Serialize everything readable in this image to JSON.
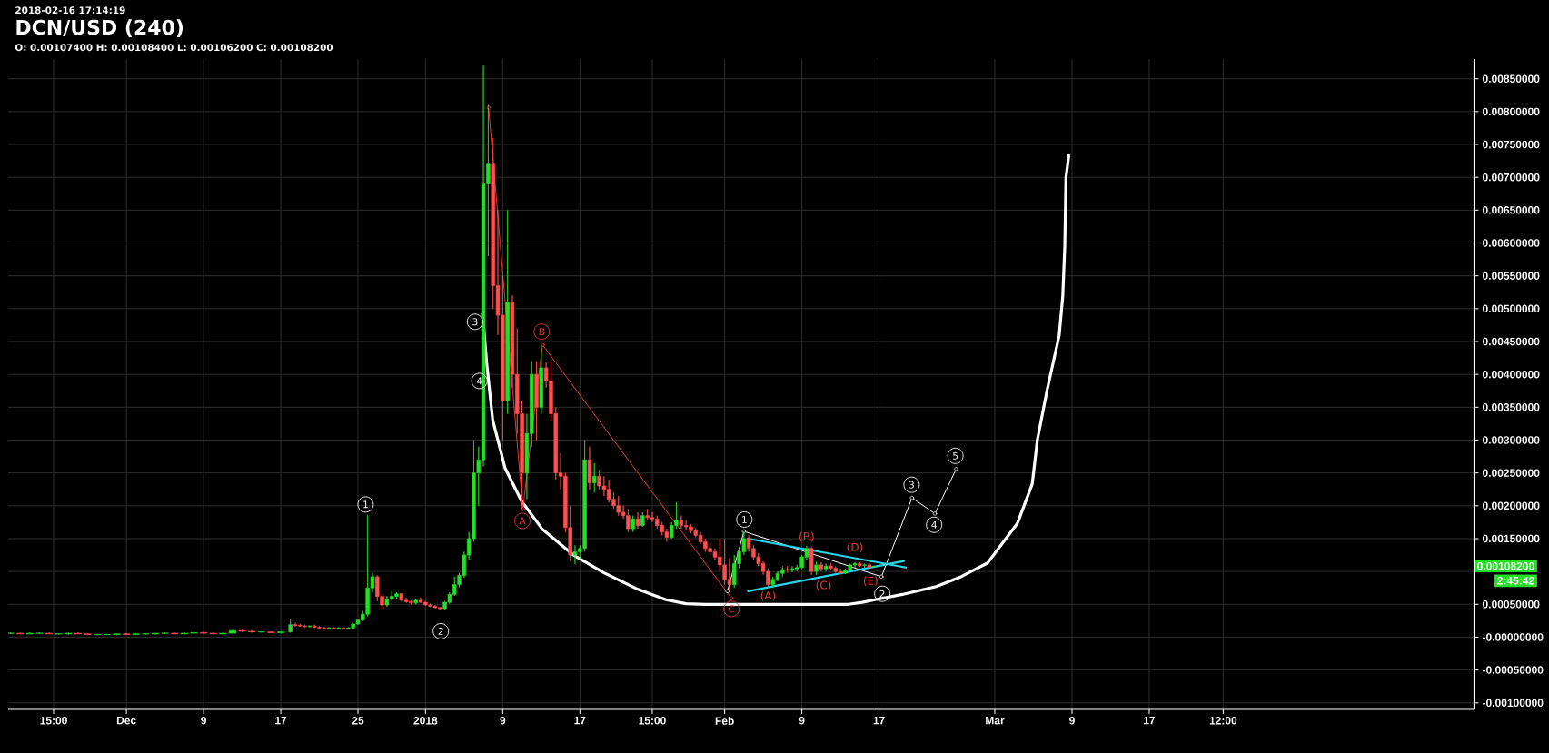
{
  "chart_data": {
    "type": "candlestick",
    "title": "DCN/USD (240)",
    "x": [
      "2017-11-19",
      "2017-11-20",
      "2017-11-21",
      "2017-11-22",
      "2017-11-23",
      "2017-11-24",
      "2017-11-25",
      "2017-11-26",
      "2017-11-27",
      "2017-11-28",
      "2017-11-29",
      "2017-11-30",
      "2017-12-01",
      "2017-12-02",
      "2017-12-03",
      "2017-12-04",
      "2017-12-05",
      "2017-12-06",
      "2017-12-07",
      "2017-12-08",
      "2017-12-09",
      "2017-12-10",
      "2017-12-11",
      "2017-12-12",
      "2017-12-13",
      "2017-12-14",
      "2017-12-15",
      "2017-12-16",
      "2017-12-17",
      "2017-12-18T00:00",
      "2017-12-18T12:00",
      "2017-12-19T00:00",
      "2017-12-19T12:00",
      "2017-12-20T00:00",
      "2017-12-20T12:00",
      "2017-12-21T00:00",
      "2017-12-21T12:00",
      "2017-12-22T00:00",
      "2017-12-22T12:00",
      "2017-12-23T00:00",
      "2017-12-23T12:00",
      "2017-12-24T00:00",
      "2017-12-24T12:00",
      "2017-12-25T00:00",
      "2017-12-25T12:00",
      "2017-12-26T00:00",
      "2017-12-26T12:00",
      "2017-12-27T00:00",
      "2017-12-27T12:00",
      "2017-12-28T00:00",
      "2017-12-28T12:00",
      "2017-12-29T00:00",
      "2017-12-29T12:00",
      "2017-12-30T00:00",
      "2017-12-30T12:00",
      "2017-12-31T00:00",
      "2017-12-31T12:00",
      "2018-01-01T00:00",
      "2018-01-01T12:00",
      "2018-01-02T00:00",
      "2018-01-02T12:00",
      "2018-01-03T00:00",
      "2018-01-03T12:00",
      "2018-01-04T00:00",
      "2018-01-04T12:00",
      "2018-01-05T00:00",
      "2018-01-05T12:00",
      "2018-01-06T00:00",
      "2018-01-06T12:00",
      "2018-01-07T00:00",
      "2018-01-07T12:00",
      "2018-01-08T00:00",
      "2018-01-08T12:00",
      "2018-01-09T00:00",
      "2018-01-09T12:00",
      "2018-01-10T00:00",
      "2018-01-10T12:00",
      "2018-01-11T00:00",
      "2018-01-11T12:00",
      "2018-01-12T00:00",
      "2018-01-12T12:00",
      "2018-01-13T00:00",
      "2018-01-13T12:00",
      "2018-01-14T00:00",
      "2018-01-14T12:00",
      "2018-01-15T00:00",
      "2018-01-15T12:00",
      "2018-01-16T00:00",
      "2018-01-16T12:00",
      "2018-01-17T00:00",
      "2018-01-17T12:00",
      "2018-01-18T00:00",
      "2018-01-18T12:00",
      "2018-01-19T00:00",
      "2018-01-19T12:00",
      "2018-01-20T00:00",
      "2018-01-20T12:00",
      "2018-01-21T00:00",
      "2018-01-21T12:00",
      "2018-01-22T00:00",
      "2018-01-22T12:00",
      "2018-01-23T00:00",
      "2018-01-23T12:00",
      "2018-01-24T00:00",
      "2018-01-24T12:00",
      "2018-01-25T00:00",
      "2018-01-25T12:00",
      "2018-01-26T00:00",
      "2018-01-26T12:00",
      "2018-01-27T00:00",
      "2018-01-27T12:00",
      "2018-01-28T00:00",
      "2018-01-28T12:00",
      "2018-01-29T00:00",
      "2018-01-29T12:00",
      "2018-01-30T00:00",
      "2018-01-30T12:00",
      "2018-01-31T00:00",
      "2018-01-31T12:00",
      "2018-02-01T00:00",
      "2018-02-01T12:00",
      "2018-02-02T00:00",
      "2018-02-02T12:00",
      "2018-02-03T00:00",
      "2018-02-03T12:00",
      "2018-02-04T00:00",
      "2018-02-04T12:00",
      "2018-02-05T00:00",
      "2018-02-05T12:00",
      "2018-02-06T00:00",
      "2018-02-06T12:00",
      "2018-02-07T00:00",
      "2018-02-07T12:00",
      "2018-02-08T00:00",
      "2018-02-08T12:00",
      "2018-02-09T00:00",
      "2018-02-09T12:00",
      "2018-02-10T00:00",
      "2018-02-10T12:00",
      "2018-02-11T00:00",
      "2018-02-11T12:00",
      "2018-02-12T00:00",
      "2018-02-12T12:00",
      "2018-02-13T00:00",
      "2018-02-13T12:00",
      "2018-02-14T00:00",
      "2018-02-14T12:00",
      "2018-02-15T00:00",
      "2018-02-15T12:00",
      "2018-02-16T00:00",
      "2018-02-16T12:00"
    ],
    "ohlc": [
      [
        6e-05,
        7e-05,
        5e-05,
        6e-05
      ],
      [
        6e-05,
        7e-05,
        5e-05,
        5e-05
      ],
      [
        5e-05,
        7e-05,
        5e-05,
        6e-05
      ],
      [
        6e-05,
        7e-05,
        5e-05,
        6e-05
      ],
      [
        6e-05,
        7e-05,
        5e-05,
        5e-05
      ],
      [
        5e-05,
        6e-05,
        4e-05,
        5e-05
      ],
      [
        5e-05,
        7e-05,
        4e-05,
        6e-05
      ],
      [
        6e-05,
        7e-05,
        5e-05,
        5e-05
      ],
      [
        5e-05,
        6e-05,
        4e-05,
        4e-05
      ],
      [
        4e-05,
        5e-05,
        3e-05,
        4e-05
      ],
      [
        4e-05,
        5e-05,
        3e-05,
        4e-05
      ],
      [
        4e-05,
        5e-05,
        3e-05,
        5e-05
      ],
      [
        5e-05,
        6e-05,
        4e-05,
        4e-05
      ],
      [
        4e-05,
        6e-05,
        4e-05,
        5e-05
      ],
      [
        5e-05,
        6e-05,
        4e-05,
        5e-05
      ],
      [
        5e-05,
        6e-05,
        4e-05,
        6e-05
      ],
      [
        6e-05,
        7e-05,
        5e-05,
        6e-05
      ],
      [
        6e-05,
        7e-05,
        5e-05,
        5e-05
      ],
      [
        5e-05,
        7e-05,
        5e-05,
        6e-05
      ],
      [
        6e-05,
        8e-05,
        5e-05,
        7e-05
      ],
      [
        7e-05,
        8e-05,
        5e-05,
        6e-05
      ],
      [
        6e-05,
        7e-05,
        5e-05,
        5e-05
      ],
      [
        5e-05,
        7e-05,
        5e-05,
        6e-05
      ],
      [
        6e-05,
        0.00011,
        6e-05,
        0.0001
      ],
      [
        0.0001,
        0.00011,
        8e-05,
        9e-05
      ],
      [
        9e-05,
        0.0001,
        7e-05,
        8e-05
      ],
      [
        8e-05,
        9e-05,
        7e-05,
        8e-05
      ],
      [
        8e-05,
        9e-05,
        6e-05,
        7e-05
      ],
      [
        7e-05,
        9e-05,
        6e-05,
        8e-05
      ],
      [
        8e-05,
        0.00028,
        7e-05,
        0.00019
      ],
      [
        0.00019,
        0.00022,
        0.00016,
        0.00018
      ],
      [
        0.00018,
        0.0002,
        0.00016,
        0.00017
      ],
      [
        0.00017,
        0.00019,
        0.00015,
        0.00016
      ],
      [
        0.00016,
        0.00018,
        0.00015,
        0.00017
      ],
      [
        0.00017,
        0.00019,
        0.00014,
        0.00015
      ],
      [
        0.00015,
        0.00017,
        0.00013,
        0.00014
      ],
      [
        0.00014,
        0.00016,
        0.00012,
        0.00013
      ],
      [
        0.00013,
        0.00015,
        0.00012,
        0.00014
      ],
      [
        0.00014,
        0.00015,
        0.00012,
        0.00013
      ],
      [
        0.00013,
        0.00015,
        0.00012,
        0.00014
      ],
      [
        0.00014,
        0.00015,
        0.00012,
        0.00013
      ],
      [
        0.00013,
        0.00015,
        0.00012,
        0.00014
      ],
      [
        0.00014,
        0.00021,
        0.00013,
        0.0002
      ],
      [
        0.0002,
        0.00028,
        0.00019,
        0.00026
      ],
      [
        0.00026,
        0.0004,
        0.00024,
        0.00035
      ],
      [
        0.00035,
        0.00186,
        0.00032,
        0.00075
      ],
      [
        0.00075,
        0.00098,
        0.00068,
        0.00092
      ],
      [
        0.00092,
        0.00094,
        0.00055,
        0.00062
      ],
      [
        0.00062,
        0.00066,
        0.00042,
        0.00049
      ],
      [
        0.00049,
        0.00063,
        0.00046,
        0.00058
      ],
      [
        0.00058,
        0.0007,
        0.00055,
        0.00062
      ],
      [
        0.00062,
        0.00068,
        0.00058,
        0.00066
      ],
      [
        0.00066,
        0.00067,
        0.00055,
        0.00056
      ],
      [
        0.00056,
        0.0006,
        0.00052,
        0.00054
      ],
      [
        0.00054,
        0.00056,
        0.0005,
        0.00052
      ],
      [
        0.00052,
        0.00058,
        0.0005,
        0.00056
      ],
      [
        0.00056,
        0.0006,
        0.00052,
        0.00053
      ],
      [
        0.00053,
        0.00055,
        0.00048,
        0.00049
      ],
      [
        0.00049,
        0.00051,
        0.00046,
        0.00047
      ],
      [
        0.00047,
        0.00049,
        0.00043,
        0.00045
      ],
      [
        0.00045,
        0.00046,
        0.00041,
        0.00042
      ],
      [
        0.00042,
        0.00055,
        0.00041,
        0.00053
      ],
      [
        0.00053,
        0.00068,
        0.00051,
        0.00065
      ],
      [
        0.00065,
        0.00092,
        0.00063,
        0.0008
      ],
      [
        0.0008,
        0.00098,
        0.00076,
        0.00094
      ],
      [
        0.00094,
        0.0013,
        0.0009,
        0.00125
      ],
      [
        0.00125,
        0.0016,
        0.00118,
        0.0015
      ],
      [
        0.0015,
        0.003,
        0.00145,
        0.0025
      ],
      [
        0.0025,
        0.0029,
        0.002,
        0.0027
      ],
      [
        0.0027,
        0.0087,
        0.0026,
        0.0069
      ],
      [
        0.0069,
        0.0081,
        0.0058,
        0.0072
      ],
      [
        0.0072,
        0.0076,
        0.005,
        0.00535
      ],
      [
        0.00535,
        0.0065,
        0.0046,
        0.0049
      ],
      [
        0.0049,
        0.0055,
        0.003,
        0.0036
      ],
      [
        0.0036,
        0.0065,
        0.0034,
        0.0051
      ],
      [
        0.0051,
        0.0052,
        0.0038,
        0.004
      ],
      [
        0.004,
        0.0047,
        0.0031,
        0.0034
      ],
      [
        0.0034,
        0.0036,
        0.00195,
        0.0025
      ],
      [
        0.0025,
        0.0034,
        0.0021,
        0.0031
      ],
      [
        0.0031,
        0.0042,
        0.0029,
        0.004
      ],
      [
        0.004,
        0.0042,
        0.003,
        0.0035
      ],
      [
        0.0035,
        0.00445,
        0.0034,
        0.0041
      ],
      [
        0.0041,
        0.0042,
        0.0038,
        0.0039
      ],
      [
        0.0039,
        0.0042,
        0.0033,
        0.0034
      ],
      [
        0.0034,
        0.0035,
        0.0024,
        0.0025
      ],
      [
        0.0025,
        0.0028,
        0.00225,
        0.00245
      ],
      [
        0.00245,
        0.0025,
        0.0016,
        0.00167
      ],
      [
        0.00167,
        0.002,
        0.00116,
        0.00125
      ],
      [
        0.00125,
        0.0014,
        0.00111,
        0.0013
      ],
      [
        0.0013,
        0.0014,
        0.0012,
        0.00135
      ],
      [
        0.00135,
        0.003,
        0.0013,
        0.0027
      ],
      [
        0.0027,
        0.0029,
        0.00225,
        0.00235
      ],
      [
        0.00235,
        0.00265,
        0.0022,
        0.00245
      ],
      [
        0.00245,
        0.00255,
        0.00225,
        0.0023
      ],
      [
        0.0023,
        0.00245,
        0.00215,
        0.00225
      ],
      [
        0.00225,
        0.0024,
        0.00205,
        0.0021
      ],
      [
        0.0021,
        0.0022,
        0.00195,
        0.002
      ],
      [
        0.002,
        0.00215,
        0.00185,
        0.0019
      ],
      [
        0.0019,
        0.002,
        0.0018,
        0.00185
      ],
      [
        0.00185,
        0.00195,
        0.0016,
        0.00165
      ],
      [
        0.00165,
        0.00185,
        0.0016,
        0.0018
      ],
      [
        0.0018,
        0.0019,
        0.00165,
        0.0017
      ],
      [
        0.0017,
        0.0019,
        0.00168,
        0.00185
      ],
      [
        0.00185,
        0.00195,
        0.00178,
        0.00182
      ],
      [
        0.00182,
        0.0019,
        0.00175,
        0.0018
      ],
      [
        0.0018,
        0.00185,
        0.00165,
        0.0017
      ],
      [
        0.0017,
        0.00175,
        0.00155,
        0.0016
      ],
      [
        0.0016,
        0.00165,
        0.00145,
        0.00152
      ],
      [
        0.00152,
        0.00175,
        0.0015,
        0.0017
      ],
      [
        0.0017,
        0.00205,
        0.00165,
        0.00178
      ],
      [
        0.00178,
        0.00185,
        0.00165,
        0.0017
      ],
      [
        0.0017,
        0.00178,
        0.00162,
        0.00168
      ],
      [
        0.00168,
        0.00172,
        0.00158,
        0.00162
      ],
      [
        0.00162,
        0.00166,
        0.00152,
        0.00155
      ],
      [
        0.00155,
        0.0016,
        0.00142,
        0.00145
      ],
      [
        0.00145,
        0.0015,
        0.0013,
        0.00135
      ],
      [
        0.00135,
        0.00145,
        0.00125,
        0.0013
      ],
      [
        0.0013,
        0.00135,
        0.00118,
        0.00122
      ],
      [
        0.00122,
        0.0015,
        0.001,
        0.0011
      ],
      [
        0.0011,
        0.0015,
        0.0008,
        0.00088
      ],
      [
        0.00088,
        0.0012,
        0.0007,
        0.0008
      ],
      [
        0.0008,
        0.00125,
        0.00075,
        0.00112
      ],
      [
        0.00112,
        0.00135,
        0.00105,
        0.0013
      ],
      [
        0.0013,
        0.00161,
        0.00125,
        0.0015
      ],
      [
        0.0015,
        0.00155,
        0.0013,
        0.00135
      ],
      [
        0.00135,
        0.0014,
        0.00118,
        0.00122
      ],
      [
        0.00122,
        0.00128,
        0.00108,
        0.00112
      ],
      [
        0.00112,
        0.00115,
        0.00095,
        0.001
      ],
      [
        0.001,
        0.00105,
        0.00076,
        0.0008
      ],
      [
        0.0008,
        0.00092,
        0.00075,
        0.00088
      ],
      [
        0.00088,
        0.001,
        0.00085,
        0.00097
      ],
      [
        0.00097,
        0.00108,
        0.00092,
        0.00103
      ],
      [
        0.00103,
        0.00108,
        0.00098,
        0.00102
      ],
      [
        0.00102,
        0.00108,
        0.00099,
        0.00104
      ],
      [
        0.00104,
        0.0011,
        0.001,
        0.00106
      ],
      [
        0.00106,
        0.00125,
        0.00104,
        0.00122
      ],
      [
        0.00122,
        0.00139,
        0.00118,
        0.00135
      ],
      [
        0.00135,
        0.00138,
        0.00095,
        0.001
      ],
      [
        0.001,
        0.00115,
        0.00095,
        0.0011
      ],
      [
        0.0011,
        0.00114,
        0.001,
        0.00104
      ],
      [
        0.00104,
        0.00112,
        0.001,
        0.00108
      ],
      [
        0.00108,
        0.00112,
        0.00102,
        0.00105
      ],
      [
        0.00105,
        0.00108,
        0.00098,
        0.001
      ],
      [
        0.001,
        0.00104,
        0.00096,
        0.00098
      ],
      [
        0.00098,
        0.00104,
        0.00096,
        0.00102
      ],
      [
        0.00102,
        0.00112,
        0.001,
        0.0011
      ],
      [
        0.0011,
        0.00114,
        0.00106,
        0.00112
      ],
      [
        0.00112,
        0.00114,
        0.00107,
        0.00109
      ],
      [
        0.00109,
        0.00112,
        0.00105,
        0.0011
      ],
      [
        0.0011,
        0.00112,
        0.00104,
        0.00107
      ],
      [
        0.001074,
        0.001084,
        0.001062,
        0.001082
      ]
    ],
    "colors": [
      "#22e022",
      "#ff4f4f",
      "#22e022",
      "#22e022",
      "#ff4f4f",
      "#22e022",
      "#22e022",
      "#ff4f4f",
      "#ff4f4f",
      "#22e022",
      "#22e022",
      "#22e022",
      "#ff4f4f",
      "#22e022",
      "#22e022",
      "#22e022",
      "#22e022",
      "#ff4f4f",
      "#22e022",
      "#22e022",
      "#ff4f4f",
      "#ff4f4f",
      "#22e022",
      "#22e022",
      "#ff4f4f",
      "#ff4f4f",
      "#22e022",
      "#ff4f4f",
      "#22e022",
      "#22e022",
      "#ff4f4f",
      "#ff4f4f",
      "#ff4f4f",
      "#22e022",
      "#ff4f4f",
      "#ff4f4f",
      "#ff4f4f",
      "#22e022",
      "#ff4f4f",
      "#22e022",
      "#ff4f4f",
      "#22e022",
      "#22e022",
      "#22e022",
      "#22e022",
      "#22e022",
      "#22e022",
      "#ff4f4f",
      "#ff4f4f",
      "#22e022",
      "#22e022",
      "#22e022",
      "#ff4f4f",
      "#ff4f4f",
      "#ff4f4f",
      "#22e022",
      "#ff4f4f",
      "#ff4f4f",
      "#ff4f4f",
      "#ff4f4f",
      "#ff4f4f",
      "#22e022",
      "#22e022",
      "#22e022",
      "#22e022",
      "#22e022",
      "#22e022",
      "#22e022",
      "#22e022",
      "#22e022",
      "#22e022",
      "#ff4f4f",
      "#ff4f4f",
      "#ff4f4f",
      "#22e022",
      "#ff4f4f",
      "#ff4f4f",
      "#ff4f4f",
      "#22e022",
      "#22e022",
      "#ff4f4f",
      "#22e022",
      "#ff4f4f",
      "#ff4f4f",
      "#ff4f4f",
      "#ff4f4f",
      "#ff4f4f",
      "#ff4f4f",
      "#22e022",
      "#22e022",
      "#22e022",
      "#ff4f4f",
      "#22e022",
      "#ff4f4f",
      "#ff4f4f",
      "#ff4f4f",
      "#ff4f4f",
      "#ff4f4f",
      "#ff4f4f",
      "#ff4f4f",
      "#22e022",
      "#ff4f4f",
      "#22e022",
      "#ff4f4f",
      "#ff4f4f",
      "#ff4f4f",
      "#ff4f4f",
      "#ff4f4f",
      "#22e022",
      "#22e022",
      "#ff4f4f",
      "#ff4f4f",
      "#ff4f4f",
      "#ff4f4f",
      "#ff4f4f",
      "#ff4f4f",
      "#ff4f4f",
      "#ff4f4f",
      "#ff4f4f",
      "#ff4f4f",
      "#ff4f4f",
      "#22e022",
      "#22e022",
      "#22e022",
      "#ff4f4f",
      "#ff4f4f",
      "#ff4f4f",
      "#ff4f4f",
      "#ff4f4f",
      "#22e022",
      "#22e022",
      "#22e022",
      "#ff4f4f",
      "#22e022",
      "#22e022",
      "#22e022",
      "#22e022",
      "#ff4f4f",
      "#22e022",
      "#ff4f4f",
      "#22e022",
      "#ff4f4f",
      "#ff4f4f",
      "#ff4f4f",
      "#22e022",
      "#22e022",
      "#22e022",
      "#ff4f4f",
      "#22e022",
      "#ff4f4f",
      "#22e022"
    ],
    "series": [
      {
        "type": "line",
        "color": "#ffffff",
        "x": [
          "2018-01-06T22:00",
          "2018-01-07T08:00",
          "2018-01-07T23:00",
          "2018-01-09T06:00",
          "2018-01-10T23:00",
          "2018-01-13T03:00",
          "2018-01-16T08:00",
          "2018-01-19T12:00",
          "2018-01-22T20:00",
          "2018-01-25T22:00",
          "2018-01-28T00:00",
          "2018-01-30T00:00",
          "2018-02-13T20:00",
          "2018-02-15T06:00",
          "2018-02-16T14:00",
          "2018-02-19T10:00",
          "2018-02-22T22:00",
          "2018-02-25T12:00",
          "2018-02-28T06:00",
          "2018-03-03T08:00",
          "2018-03-04T21:00",
          "2018-03-05T10:00",
          "2018-03-06T10:00",
          "2018-03-07T16:00",
          "2018-03-08T01:00",
          "2018-03-08T06:00",
          "2018-03-08T09:00",
          "2018-03-08T16:00"
        ],
        "values": [
          0.00492,
          0.00418,
          0.00331,
          0.00257,
          0.00207,
          0.00164,
          0.00125,
          0.00098,
          0.00074,
          0.00057,
          0.00051,
          0.0005,
          0.0005,
          0.00053,
          0.00057,
          0.00065,
          0.00077,
          0.00092,
          0.00113,
          0.00173,
          0.00233,
          0.00301,
          0.00376,
          0.00459,
          0.00519,
          0.00594,
          0.007,
          0.00733
        ]
      },
      {
        "type": "line",
        "color": "#e53935",
        "marker": "circle",
        "x": [
          "2018-01-07T13:00",
          "2018-01-11T02:00",
          "2018-01-13T03:00",
          "2018-02-01T17:00"
        ],
        "values": [
          0.00806,
          0.00195,
          0.00445,
          0.00059
        ]
      },
      {
        "type": "line",
        "color": "#ffffff",
        "marker": "circle",
        "x": [
          "2018-02-01T07:00",
          "2018-02-03T00:00",
          "2018-02-17T06:00",
          "2018-02-20T10:00",
          "2018-02-22T19:00",
          "2018-02-25T00:00"
        ],
        "values": [
          0.0007,
          0.00161,
          0.00092,
          0.00212,
          0.00188,
          0.00256
        ]
      },
      {
        "type": "line",
        "color": "#29d3e8",
        "x": [
          "2018-02-03T10:00",
          "2018-02-19T19:00"
        ],
        "values": [
          0.0015,
          0.00106
        ]
      },
      {
        "type": "line",
        "color": "#29d3e8",
        "x": [
          "2018-02-03T10:00",
          "2018-02-19T14:00"
        ],
        "values": [
          0.0007,
          0.00116
        ]
      }
    ],
    "xlim": [
      "2017-11-18T18:00",
      "2018-04-19T16:00"
    ],
    "ylim": [
      -0.0011,
      0.0088
    ],
    "xticks": [
      {
        "value": "2017-11-23T11:00",
        "label": "15:00"
      },
      {
        "value": "2017-12-01",
        "label": "Dec"
      },
      {
        "value": "2017-12-09",
        "label": "9"
      },
      {
        "value": "2017-12-17",
        "label": "17"
      },
      {
        "value": "2017-12-25",
        "label": "25"
      },
      {
        "value": "2018-01-01",
        "label": "2018"
      },
      {
        "value": "2018-01-09",
        "label": "9"
      },
      {
        "value": "2018-01-17",
        "label": "17"
      },
      {
        "value": "2018-01-24T12:00",
        "label": "15:00"
      },
      {
        "value": "2018-02-01",
        "label": "Feb"
      },
      {
        "value": "2018-02-09",
        "label": "9"
      },
      {
        "value": "2018-02-17",
        "label": "17"
      },
      {
        "value": "2018-03-01",
        "label": "Mar"
      },
      {
        "value": "2018-03-09",
        "label": "9"
      },
      {
        "value": "2018-03-17",
        "label": "17"
      },
      {
        "value": "2018-03-24T16:00",
        "label": "12:00"
      }
    ],
    "yticks": [
      {
        "value": -0.001,
        "label": "-0.00100000"
      },
      {
        "value": -0.0005,
        "label": "-0.00050000"
      },
      {
        "value": 0,
        "label": "-0.00000000"
      },
      {
        "value": 0.0005,
        "label": "0.00050000"
      },
      {
        "value": 0.001,
        "label": null
      },
      {
        "value": 0.0015,
        "label": "0.00150000"
      },
      {
        "value": 0.002,
        "label": "0.00200000"
      },
      {
        "value": 0.0025,
        "label": "0.00250000"
      },
      {
        "value": 0.003,
        "label": "0.00300000"
      },
      {
        "value": 0.0035,
        "label": "0.00350000"
      },
      {
        "value": 0.004,
        "label": "0.00400000"
      },
      {
        "value": 0.0045,
        "label": "0.00450000"
      },
      {
        "value": 0.005,
        "label": "0.00500000"
      },
      {
        "value": 0.0055,
        "label": "0.00550000"
      },
      {
        "value": 0.006,
        "label": "0.00600000"
      },
      {
        "value": 0.0065,
        "label": "0.00650000"
      },
      {
        "value": 0.007,
        "label": "0.00700000"
      },
      {
        "value": 0.0075,
        "label": "0.00750000"
      },
      {
        "value": 0.008,
        "label": "0.00800000"
      },
      {
        "value": 0.0085,
        "label": "0.00850000"
      }
    ],
    "grid": true,
    "annotations": [
      "2018-02-16 17:14:19",
      "O: 0.00107400 H: 0.00108400 L: 0.00106200 C: 0.00108200",
      "0.00108200",
      "2:45:42",
      {
        "text": "1",
        "x": "2017-12-25T19:00",
        "y": 0.00202
      },
      {
        "text": "2",
        "x": "2018-01-02T14:00",
        "y": 9e-05
      },
      {
        "text": "3",
        "x": "2018-01-06T03:00",
        "y": 0.0048
      },
      {
        "text": "4",
        "x": "2018-01-06T14:00",
        "y": 0.0039
      },
      {
        "text": "1",
        "x": "2018-02-03T01:00",
        "y": 0.00179
      },
      {
        "text": "2",
        "x": "2018-02-17T08:00",
        "y": 0.00066
      },
      {
        "text": "3",
        "x": "2018-02-20T09:00",
        "y": 0.00232
      },
      {
        "text": "4",
        "x": "2018-02-22T17:00",
        "y": 0.00171
      },
      {
        "text": "5",
        "x": "2018-02-24T22:00",
        "y": 0.00276
      },
      {
        "text": "A",
        "x": "2018-01-11T01:00",
        "y": 0.00177
      },
      {
        "text": "B",
        "x": "2018-01-13T01:00",
        "y": 0.00465
      },
      {
        "text": "C",
        "x": "2018-02-01T17:00",
        "y": 0.00043
      },
      {
        "text": "(A)",
        "x": "2018-02-05T12:00",
        "y": 0.00076
      },
      {
        "text": "(B)",
        "x": "2018-02-09T12:00",
        "y": 0.00139
      },
      {
        "text": "(C)",
        "x": "2018-02-11T06:00",
        "y": 0.00092
      },
      {
        "text": "(D)",
        "x": "2018-02-14T12:00",
        "y": 0.0012
      },
      {
        "text": "(E)",
        "x": "2018-02-17T06:00",
        "y": 0.00092
      }
    ]
  }
}
